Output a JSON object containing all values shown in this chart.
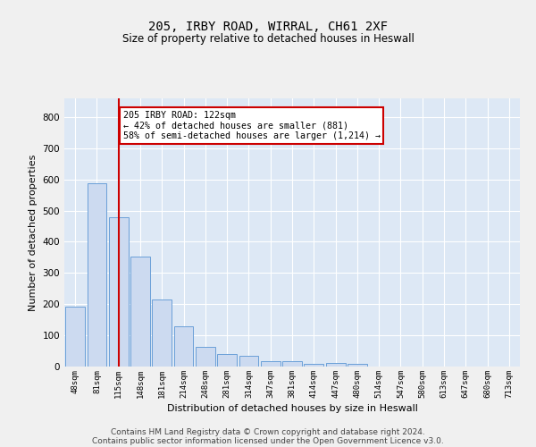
{
  "title_line1": "205, IRBY ROAD, WIRRAL, CH61 2XF",
  "title_line2": "Size of property relative to detached houses in Heswall",
  "xlabel": "Distribution of detached houses by size in Heswall",
  "ylabel": "Number of detached properties",
  "bar_labels": [
    "48sqm",
    "81sqm",
    "115sqm",
    "148sqm",
    "181sqm",
    "214sqm",
    "248sqm",
    "281sqm",
    "314sqm",
    "347sqm",
    "381sqm",
    "414sqm",
    "447sqm",
    "480sqm",
    "514sqm",
    "547sqm",
    "580sqm",
    "613sqm",
    "647sqm",
    "680sqm",
    "713sqm"
  ],
  "bar_values": [
    192,
    588,
    480,
    353,
    215,
    130,
    62,
    40,
    33,
    16,
    16,
    9,
    11,
    9,
    0,
    0,
    0,
    0,
    0,
    0,
    0
  ],
  "bar_color": "#ccdaf0",
  "bar_edge_color": "#6a9fd8",
  "vline_x": 2,
  "annotation_text": "205 IRBY ROAD: 122sqm\n← 42% of detached houses are smaller (881)\n58% of semi-detached houses are larger (1,214) →",
  "annotation_box_color": "#ffffff",
  "annotation_box_edge_color": "#cc0000",
  "vline_color": "#cc0000",
  "ylim": [
    0,
    860
  ],
  "yticks": [
    0,
    100,
    200,
    300,
    400,
    500,
    600,
    700,
    800
  ],
  "background_color": "#dde8f5",
  "grid_color": "#ffffff",
  "footer_line1": "Contains HM Land Registry data © Crown copyright and database right 2024.",
  "footer_line2": "Contains public sector information licensed under the Open Government Licence v3.0."
}
